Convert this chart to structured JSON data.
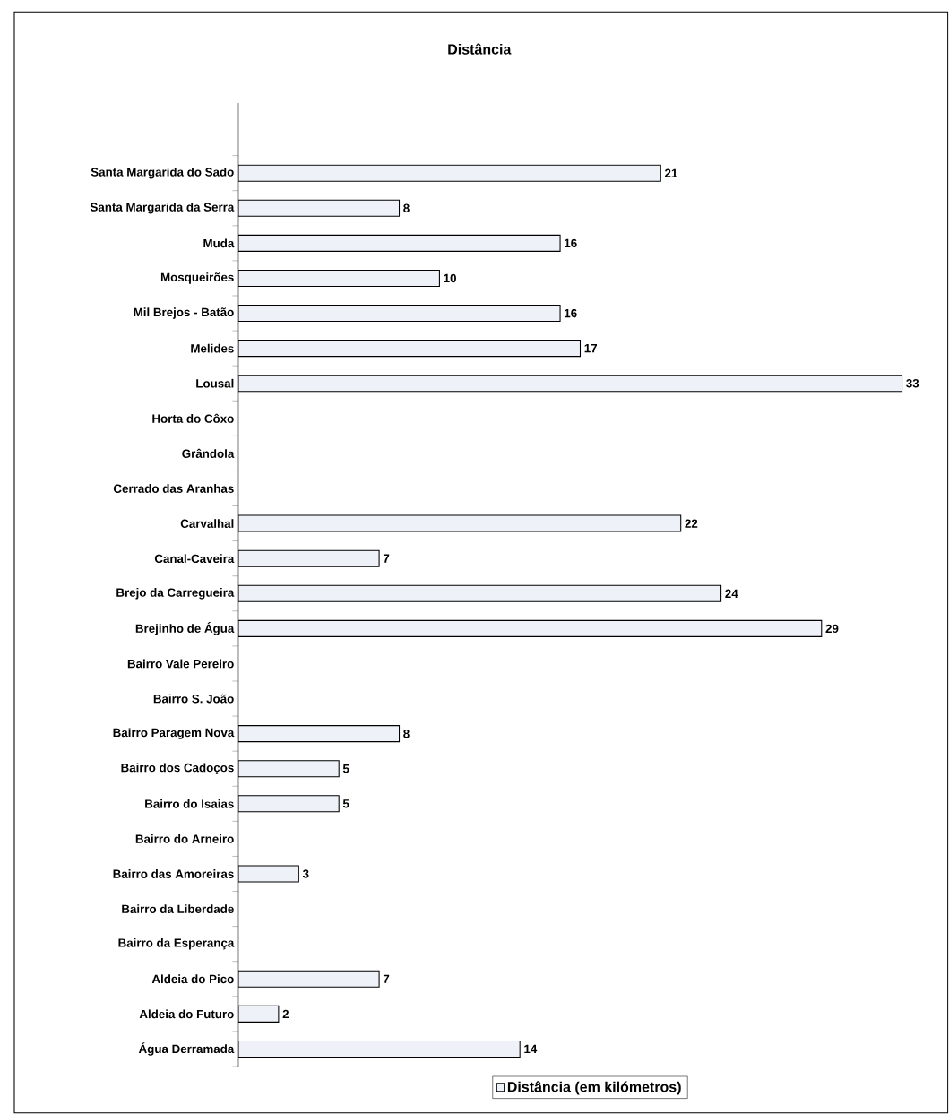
{
  "chart_data": {
    "type": "bar",
    "orientation": "horizontal",
    "title": "Distância",
    "categories": [
      "Santa Margarida do Sado",
      "Santa Margarida da Serra",
      "Muda",
      "Mosqueirões",
      "Mil Brejos - Batão",
      "Melides",
      "Lousal",
      "Horta do Côxo",
      "Grândola",
      "Cerrado das Aranhas",
      "Carvalhal",
      "Canal-Caveira",
      "Brejo da Carregueira",
      "Brejinho de Água",
      "Bairro Vale Pereiro",
      "Bairro S. João",
      "Bairro Paragem Nova",
      "Bairro dos Cadoços",
      "Bairro do Isaias",
      "Bairro do Arneiro",
      "Bairro das Amoreiras",
      "Bairro da Liberdade",
      "Bairro da Esperança",
      "Aldeia do Pico",
      "Aldeia do Futuro",
      "Água Derramada"
    ],
    "series": [
      {
        "name": "Distância (em kilómetros)",
        "color": "#eef2f8",
        "values": [
          21,
          8,
          16,
          10,
          16,
          17,
          33,
          null,
          null,
          null,
          22,
          7,
          24,
          29,
          null,
          null,
          8,
          5,
          5,
          null,
          3,
          null,
          null,
          7,
          2,
          14
        ]
      }
    ],
    "data_labels": true,
    "legend": "bottom",
    "tick_labels": "y"
  }
}
